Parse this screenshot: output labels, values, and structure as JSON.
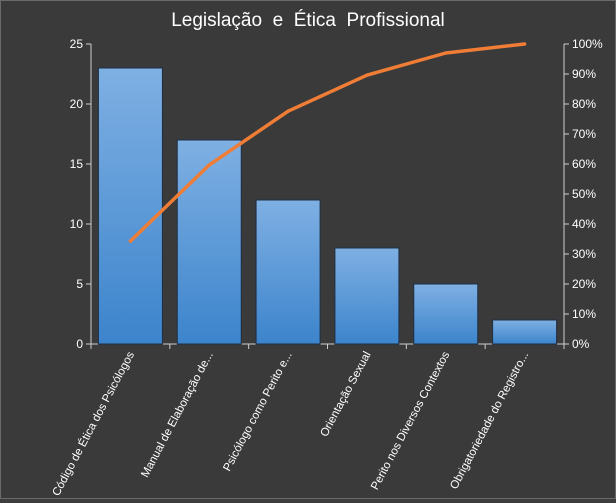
{
  "chart_data": {
    "type": "bar",
    "title": "Legislação  e  Ética  Profissional",
    "categories": [
      "Código de Ética dos Psicólogos",
      "Manual de Elaboração de...",
      "Psicólogo como Perito e...",
      "Orientação Sexual",
      "Perito nos Diversos Contextos",
      "Obrigatoriedade do Registro..."
    ],
    "series": [
      {
        "type": "bar",
        "values": [
          23,
          17,
          12,
          8,
          5,
          2
        ]
      },
      {
        "type": "line",
        "axis": "secondary",
        "values": [
          34.3,
          59.7,
          77.6,
          89.6,
          97.0,
          100.0
        ]
      }
    ],
    "ylim": [
      0,
      25
    ],
    "yticks": [
      "0",
      "5",
      "10",
      "15",
      "20",
      "25"
    ],
    "y2lim": [
      0,
      100
    ],
    "y2ticks": [
      "0%",
      "10%",
      "20%",
      "30%",
      "40%",
      "50%",
      "60%",
      "70%",
      "80%",
      "90%",
      "100%"
    ],
    "grid": false,
    "legend": "none",
    "colors": {
      "background": "#3a3a3a",
      "bar_fill_top": "#7fb0e3",
      "bar_fill_bottom": "#3c84cc",
      "bar_stroke": "#1f2f44",
      "line": "#ef7d36",
      "text": "#ffffff",
      "axis": "#cfcfcf"
    }
  }
}
